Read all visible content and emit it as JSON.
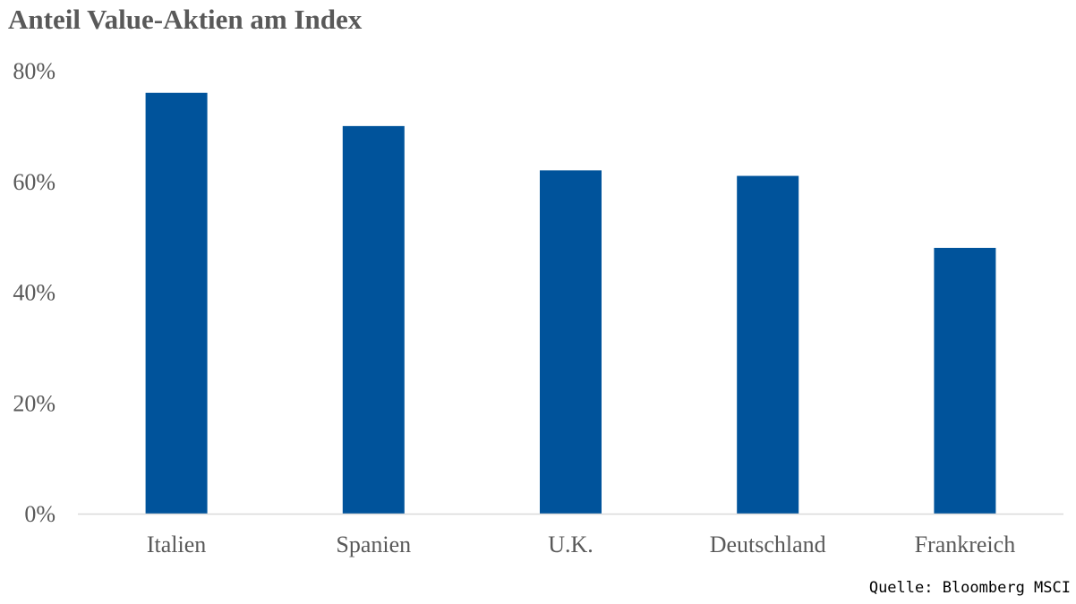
{
  "chart_data": {
    "type": "bar",
    "title": "Anteil Value-Aktien am Index",
    "categories": [
      "Italien",
      "Spanien",
      "U.K.",
      "Deutschland",
      "Frankreich"
    ],
    "values": [
      76,
      70,
      62,
      61,
      48
    ],
    "unit": "%",
    "ylim": [
      0,
      80
    ],
    "yticks": [
      "0%",
      "20%",
      "40%",
      "60%",
      "80%"
    ],
    "ytick_values": [
      0,
      20,
      40,
      60,
      80
    ],
    "grid": false,
    "xlabel": "",
    "ylabel": "",
    "bar_color": "#00539B",
    "axis_color": "#D9D9D9",
    "source": "Quelle: Bloomberg MSCI"
  }
}
